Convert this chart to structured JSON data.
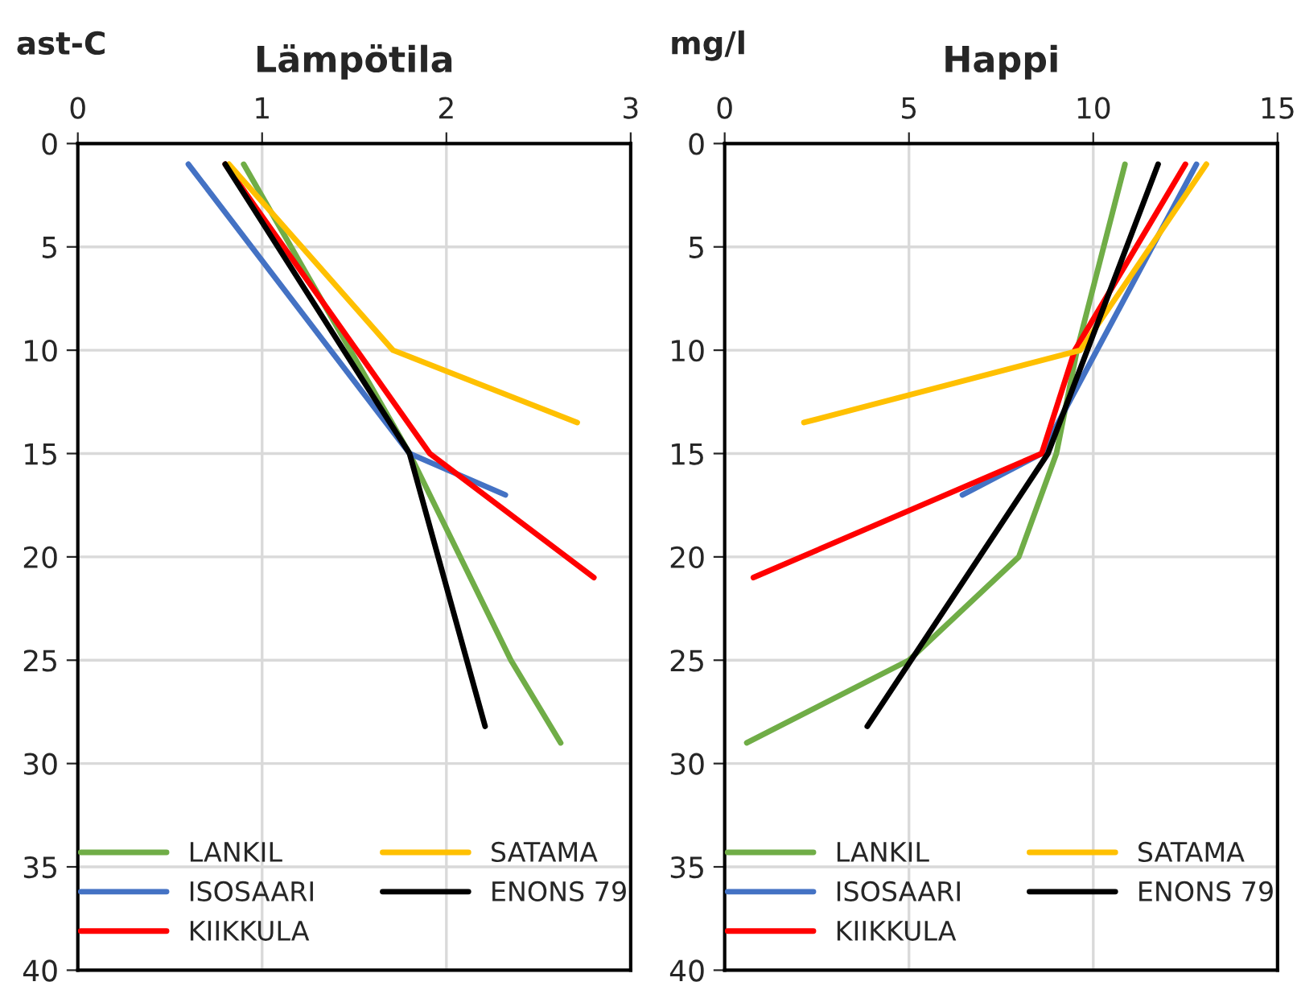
{
  "chart_data": [
    {
      "type": "line",
      "title": "Lämpötila",
      "ylabel": "ast-C",
      "xlim": [
        0,
        3
      ],
      "xticks": [
        0,
        1,
        2,
        3
      ],
      "ylim": [
        40,
        0
      ],
      "yticks": [
        0,
        5,
        10,
        15,
        20,
        25,
        30,
        35,
        40
      ],
      "grid": true,
      "legend": "bottom",
      "series": [
        {
          "name": "LANKIL",
          "color": "#70ad47",
          "x": [
            0.9,
            1.8,
            2.35,
            2.62
          ],
          "values": [
            1,
            15,
            25,
            29
          ]
        },
        {
          "name": "ISOSAARI",
          "color": "#4472c4",
          "x": [
            0.6,
            1.8,
            2.32
          ],
          "values": [
            1,
            15,
            17
          ]
        },
        {
          "name": "KIIKKULA",
          "color": "#ff0000",
          "x": [
            0.8,
            1.91,
            2.8
          ],
          "values": [
            1,
            15,
            21
          ]
        },
        {
          "name": "SATAMA",
          "color": "#ffc000",
          "x": [
            0.82,
            1.71,
            2.71
          ],
          "values": [
            1,
            10,
            13.5
          ]
        },
        {
          "name": "ENONS 79",
          "color": "#000000",
          "x": [
            0.8,
            1.8,
            2.21
          ],
          "values": [
            1,
            15,
            28.2
          ]
        }
      ]
    },
    {
      "type": "line",
      "title": "Happi",
      "ylabel": "mg/l",
      "xlim": [
        0,
        15
      ],
      "xticks": [
        0,
        5,
        10,
        15
      ],
      "ylim": [
        40,
        0
      ],
      "yticks": [
        0,
        5,
        10,
        15,
        20,
        25,
        30,
        35,
        40
      ],
      "grid": true,
      "legend": "bottom",
      "series": [
        {
          "name": "LANKIL",
          "color": "#70ad47",
          "x": [
            10.86,
            9.56,
            9.0,
            7.98,
            5.0,
            0.6
          ],
          "values": [
            1,
            10,
            15,
            20,
            25,
            29
          ]
        },
        {
          "name": "ISOSAARI",
          "color": "#4472c4",
          "x": [
            12.8,
            8.6,
            6.45
          ],
          "values": [
            1,
            15,
            17
          ]
        },
        {
          "name": "KIIKKULA",
          "color": "#ff0000",
          "x": [
            12.5,
            9.5,
            8.6,
            0.78
          ],
          "values": [
            1,
            10,
            15,
            21
          ]
        },
        {
          "name": "SATAMA",
          "color": "#ffc000",
          "x": [
            13.07,
            9.65,
            2.15
          ],
          "values": [
            1,
            10,
            13.5
          ]
        },
        {
          "name": "ENONS 79",
          "color": "#000000",
          "x": [
            11.76,
            8.77,
            3.87
          ],
          "values": [
            1,
            15,
            28.2
          ]
        }
      ]
    }
  ]
}
